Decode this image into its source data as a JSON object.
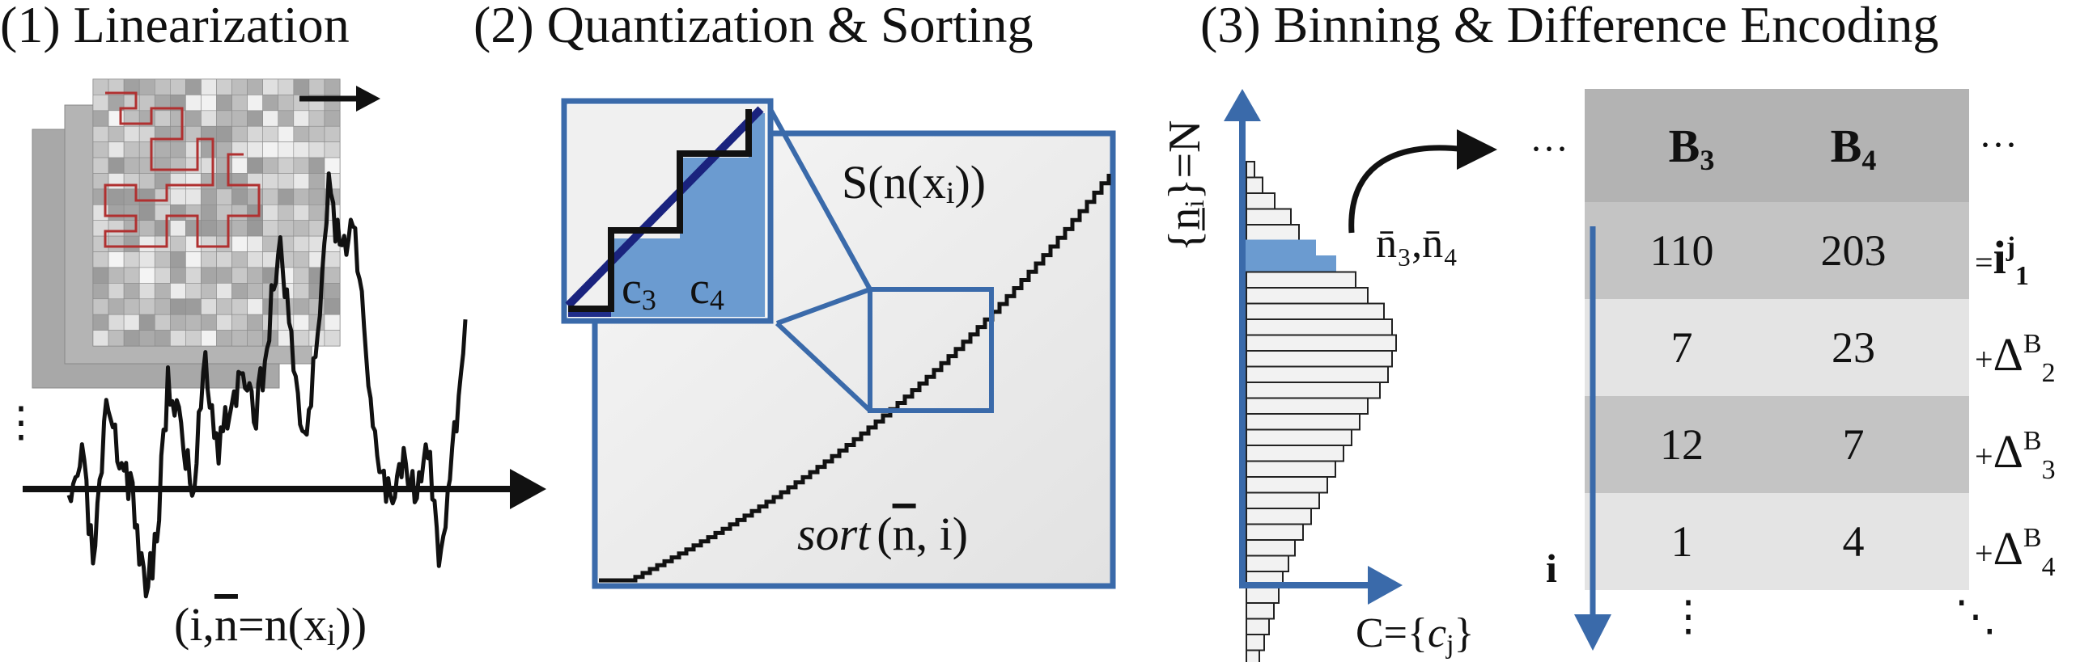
{
  "panels": {
    "p1": {
      "title": "(1) Linearization"
    },
    "p2": {
      "title": "(2) Quantization & Sorting"
    },
    "p3": {
      "title": "(3) Binning & Difference Encoding"
    }
  },
  "linearization": {
    "point_label_prefix": "(i,",
    "point_label_n": "n",
    "point_label_suffix": "=n(x",
    "point_label_sub": "i",
    "point_label_end": "))",
    "ellipsis": "⋮"
  },
  "sorting": {
    "curve_label_main": "S(n(x",
    "curve_label_sub": "i",
    "curve_label_end": "))",
    "sort_label_func": "sort",
    "sort_label_args_open": "(",
    "sort_label_n": "n",
    "sort_label_args_rest": ", i)",
    "inset_c3": "c",
    "inset_c3_sub": "3",
    "inset_c4": "c",
    "inset_c4_sub": "4"
  },
  "binning": {
    "y_axis_label": "{n̲ᵢ}=N",
    "x_axis_label_prefix": "C={",
    "x_axis_label_c": "c",
    "x_axis_label_sub": "j",
    "x_axis_label_end": "}",
    "bin_label": "n̄₃,n̄₄",
    "arrow_ellipsis": "···",
    "right_ellipsis": "···",
    "row_axis_label": "i",
    "col_vdots": "⋮",
    "diag_dots": "⋱",
    "table": {
      "headers": [
        {
          "main": "B",
          "sub": "3"
        },
        {
          "main": "B",
          "sub": "4"
        }
      ],
      "rows": [
        {
          "cells": [
            "110",
            "203"
          ],
          "note_sign": "=",
          "note_main": "i",
          "note_sup": "j",
          "note_sub": "1"
        },
        {
          "cells": [
            "7",
            "23"
          ],
          "note_sign": "+",
          "note_main": "Δ",
          "note_sup": "B",
          "note_sub": "2"
        },
        {
          "cells": [
            "12",
            "7"
          ],
          "note_sign": "+",
          "note_main": "Δ",
          "note_sup": "B",
          "note_sub": "3"
        },
        {
          "cells": [
            "1",
            "4"
          ],
          "note_sign": "+",
          "note_main": "Δ",
          "note_sup": "B",
          "note_sub": "4"
        }
      ]
    }
  },
  "colors": {
    "accent_blue": "#3a6aaa",
    "fill_blue": "#6b9bd0",
    "table_dark": "#bdbdbd",
    "table_light": "#e3e3e3",
    "hilbert_red": "#b03030"
  }
}
